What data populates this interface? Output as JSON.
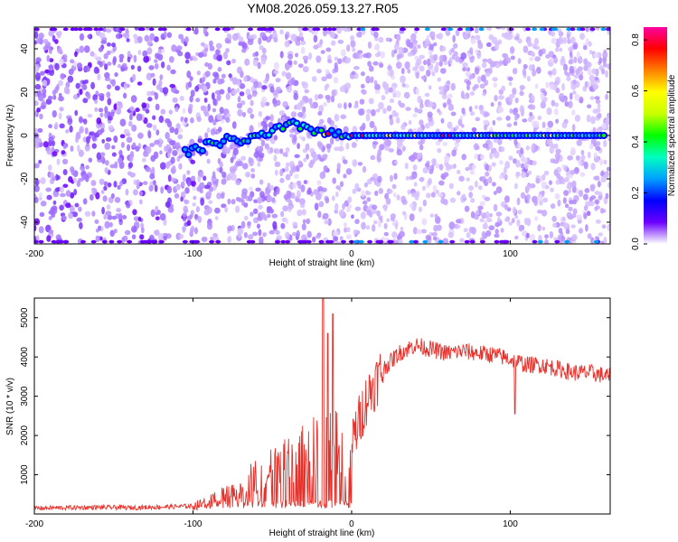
{
  "title": "YM08.2026.059.13.27.R05",
  "chart_data": [
    {
      "type": "heatmap",
      "xlabel": "Height of straight line (km)",
      "ylabel": "Frequency (Hz)",
      "xlim": [
        -200,
        163
      ],
      "ylim": [
        -50,
        50
      ],
      "xticks": [
        -200,
        -100,
        0,
        100
      ],
      "yticks": [
        -40,
        -20,
        0,
        20,
        40
      ],
      "colorbar": {
        "label": "Normalized spectral amplitude",
        "range": [
          0,
          0.85
        ],
        "ticks": [
          0,
          0.2,
          0.4,
          0.6,
          0.8
        ],
        "stops": [
          "#ffffff",
          "#6a00ff",
          "#0000ff",
          "#00a0ff",
          "#00ffc0",
          "#00ff00",
          "#c8ff00",
          "#ffff00",
          "#ff8000",
          "#ff0000",
          "#ff00a0"
        ]
      },
      "signal_track": [
        {
          "x": -105,
          "y": -8
        },
        {
          "x": -95,
          "y": -6
        },
        {
          "x": -85,
          "y": -3
        },
        {
          "x": -75,
          "y": -2
        },
        {
          "x": -65,
          "y": -2
        },
        {
          "x": -55,
          "y": 0
        },
        {
          "x": -45,
          "y": 3
        },
        {
          "x": -35,
          "y": 5
        },
        {
          "x": -25,
          "y": 3
        },
        {
          "x": -15,
          "y": 1
        },
        {
          "x": -5,
          "y": 0
        },
        {
          "x": 10,
          "y": 0
        },
        {
          "x": 40,
          "y": 0
        },
        {
          "x": 80,
          "y": 0
        },
        {
          "x": 120,
          "y": 0
        },
        {
          "x": 160,
          "y": 0
        }
      ]
    },
    {
      "type": "line",
      "xlabel": "Height of straight line (km)",
      "ylabel": "SNR (10 * v/v)",
      "xlim": [
        -200,
        163
      ],
      "ylim": [
        0,
        5500
      ],
      "xticks": [
        -200,
        -100,
        0,
        100
      ],
      "yticks": [
        1000,
        2000,
        3000,
        4000,
        5000
      ],
      "color": "#e8302a",
      "series": [
        {
          "name": "SNR",
          "x": [
            -200,
            -180,
            -160,
            -140,
            -120,
            -100,
            -90,
            -80,
            -70,
            -60,
            -50,
            -40,
            -30,
            -20,
            -15,
            -10,
            -5,
            0,
            5,
            10,
            20,
            30,
            40,
            50,
            60,
            70,
            80,
            90,
            100,
            110,
            120,
            130,
            140,
            150,
            163
          ],
          "y": [
            150,
            160,
            170,
            160,
            180,
            200,
            300,
            500,
            700,
            900,
            1100,
            1300,
            1500,
            1700,
            2200,
            2300,
            1500,
            1800,
            2400,
            3000,
            3700,
            4100,
            4300,
            4200,
            4100,
            4150,
            4100,
            4050,
            3950,
            3800,
            3800,
            3700,
            3600,
            3600,
            3500
          ]
        }
      ],
      "spikes": [
        {
          "x": -18,
          "y": 5500
        },
        {
          "x": -15,
          "y": 4600
        },
        {
          "x": -12,
          "y": 5100
        },
        {
          "x": 103,
          "y": 2550
        }
      ]
    }
  ]
}
